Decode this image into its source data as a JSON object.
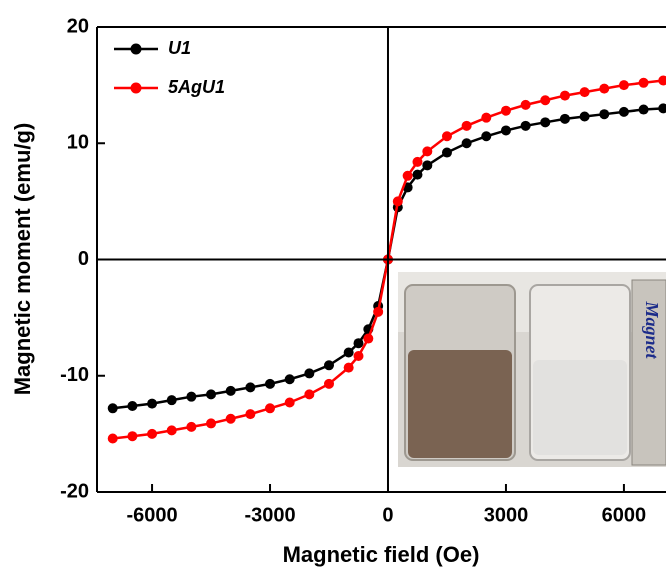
{
  "chart_data": {
    "type": "line",
    "x_label": "Magnetic field (Oe)",
    "y_label": "Magnetic moment (emu/g)",
    "x": [
      -7000,
      -6500,
      -6000,
      -5500,
      -5000,
      -4500,
      -4000,
      -3500,
      -3000,
      -2500,
      -2000,
      -1500,
      -1000,
      -750,
      -500,
      -250,
      0,
      250,
      500,
      750,
      1000,
      1500,
      2000,
      2500,
      3000,
      3500,
      4000,
      4500,
      5000,
      5500,
      6000,
      6500,
      7000
    ],
    "series": [
      {
        "name": "U1",
        "color": "#000000",
        "values": [
          -12.8,
          -12.6,
          -12.4,
          -12.1,
          -11.8,
          -11.6,
          -11.3,
          -11.0,
          -10.7,
          -10.3,
          -9.8,
          -9.1,
          -8.0,
          -7.2,
          -6.0,
          -4.0,
          0,
          4.5,
          6.2,
          7.3,
          8.1,
          9.2,
          10.0,
          10.6,
          11.1,
          11.5,
          11.8,
          12.1,
          12.3,
          12.5,
          12.7,
          12.9,
          13.0
        ]
      },
      {
        "name": "5AgU1",
        "color": "#ff0000",
        "values": [
          -15.4,
          -15.2,
          -15.0,
          -14.7,
          -14.4,
          -14.1,
          -13.7,
          -13.3,
          -12.8,
          -12.3,
          -11.6,
          -10.7,
          -9.3,
          -8.3,
          -6.8,
          -4.5,
          0,
          5.0,
          7.2,
          8.4,
          9.3,
          10.6,
          11.5,
          12.2,
          12.8,
          13.3,
          13.7,
          14.1,
          14.4,
          14.7,
          15.0,
          15.2,
          15.4
        ]
      }
    ],
    "xlim": [
      -7400,
      7070
    ],
    "ylim": [
      -20,
      20
    ],
    "xticks": [
      -6000,
      -3000,
      0,
      3000,
      6000
    ],
    "yticks": [
      -20,
      -10,
      0,
      10,
      20
    ],
    "legend": "upper left",
    "annotations": [
      "Magnet"
    ]
  }
}
